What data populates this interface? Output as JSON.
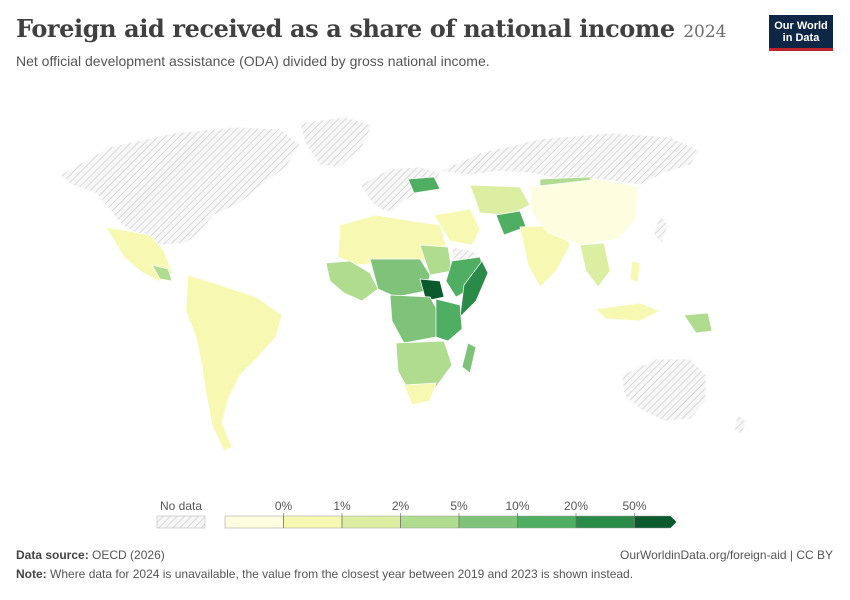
{
  "header": {
    "title": "Foreign aid received as a share of national income",
    "year": "2024",
    "subtitle": "Net official development assistance (ODA) divided by gross national income."
  },
  "logo": {
    "line1": "Our World",
    "line2": "in Data"
  },
  "legend": {
    "no_data_label": "No data",
    "ticks": [
      "0%",
      "1%",
      "2%",
      "5%",
      "10%",
      "20%",
      "50%"
    ],
    "colors": [
      "#fdfde0",
      "#f7f8b2",
      "#dbeea1",
      "#b0dc8f",
      "#7fc37a",
      "#4fae62",
      "#2a8a48",
      "#0b5a2e"
    ]
  },
  "footer": {
    "source_label": "Data source:",
    "source_value": "OECD (2026)",
    "url": "OurWorldinData.org/foreign-aid | CC BY",
    "note_label": "Note:",
    "note_value": "Where data for 2024 is unavailable, the value from the closest year between 2019 and 2023 is shown instead."
  },
  "colors": {
    "no_data_hatch": "#d2d2d2",
    "border": "#ffffff",
    "logo_bg": "#0f2747",
    "logo_accent": "#c0242b"
  }
}
